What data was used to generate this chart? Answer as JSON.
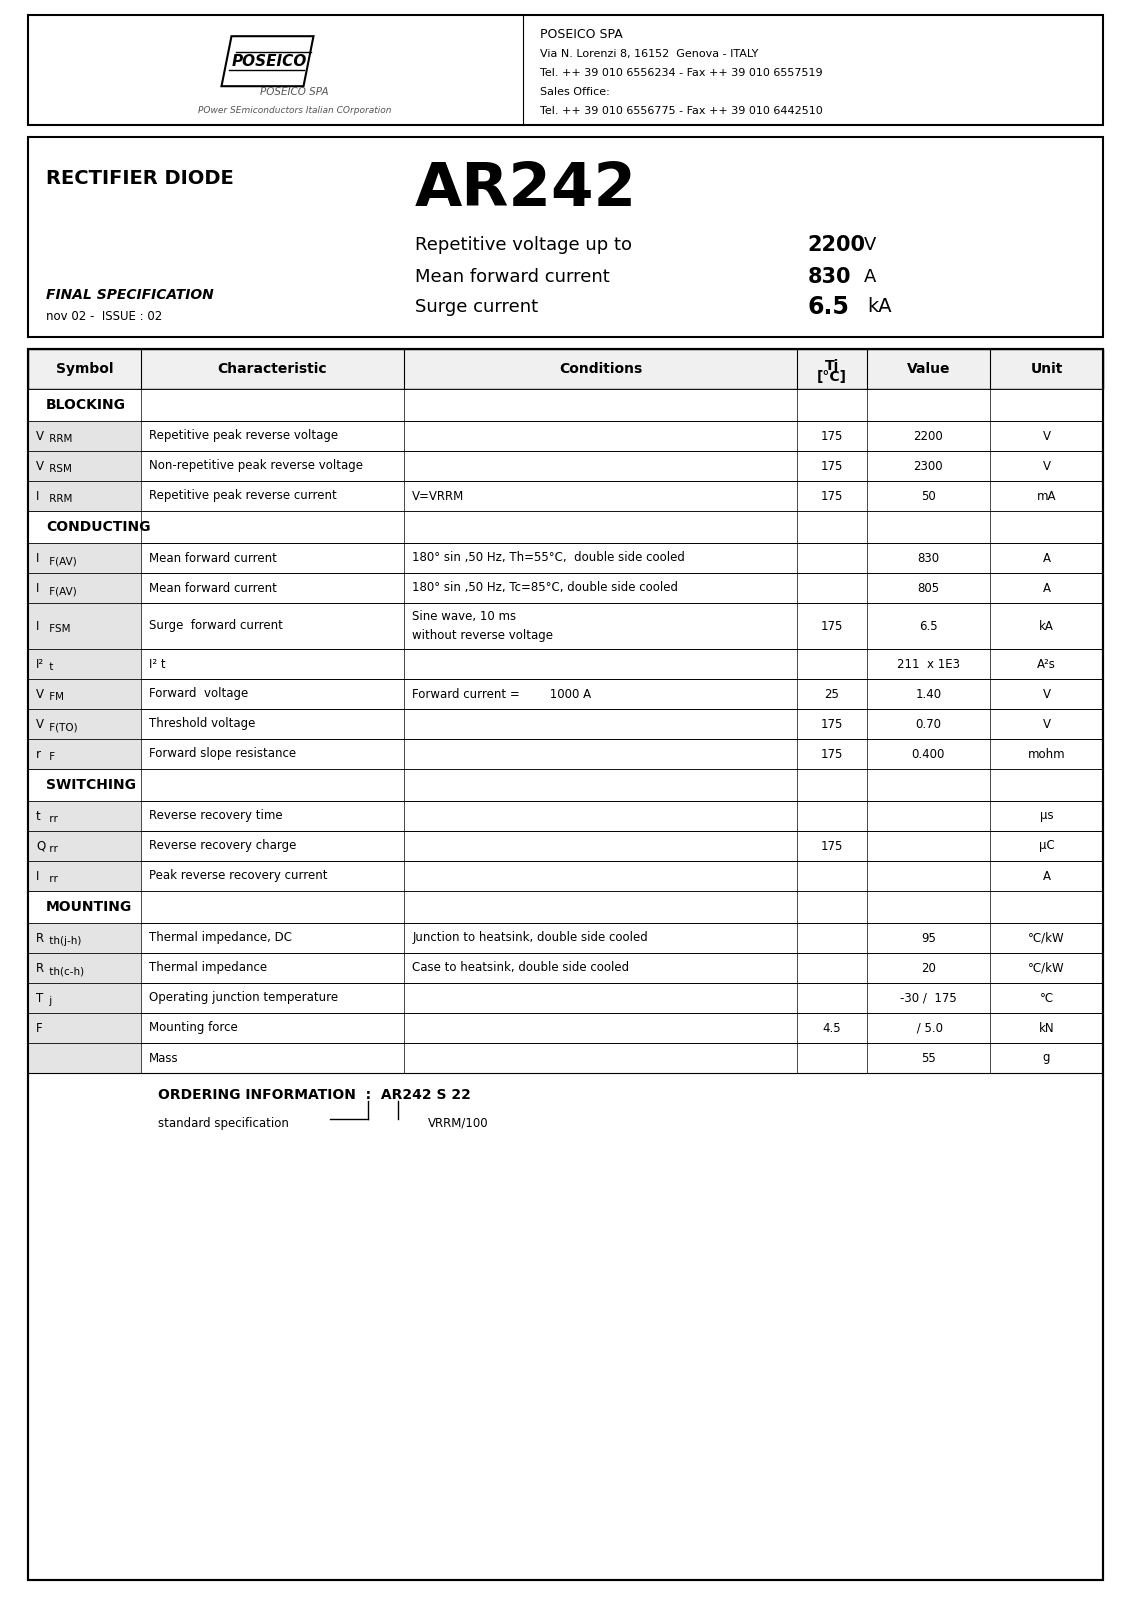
{
  "company": "POSEICO SPA",
  "address1": "Via N. Lorenzi 8, 16152  Genova - ITALY",
  "tel1": "Tel. ++ 39 010 6556234 - Fax ++ 39 010 6557519",
  "sales_office": "Sales Office:",
  "tel2": "Tel. ++ 39 010 6556775 - Fax ++ 39 010 6442510",
  "product_type": "RECTIFIER DIODE",
  "model": "AR242",
  "spec1_label": "Repetitive voltage up to",
  "spec1_value": "2200",
  "spec1_unit": "V",
  "spec2_label": "Mean forward current",
  "spec2_value": "830",
  "spec2_unit": "A",
  "spec3_label": "Surge current",
  "spec3_value": "6.5",
  "spec3_unit": "kA",
  "final_spec": "FINAL SPECIFICATION",
  "issue": "nov 02 -  ISSUE : 02",
  "sections": [
    {
      "name": "BLOCKING",
      "rows": [
        {
          "sym1": "V",
          "sym2": " RRM",
          "char": "Repetitive peak reverse voltage",
          "cond": "",
          "cond2": "",
          "tj": "175",
          "value": "2200",
          "unit": "V"
        },
        {
          "sym1": "V",
          "sym2": " RSM",
          "char": "Non-repetitive peak reverse voltage",
          "cond": "",
          "cond2": "",
          "tj": "175",
          "value": "2300",
          "unit": "V"
        },
        {
          "sym1": "I",
          "sym2": " RRM",
          "char": "Repetitive peak reverse current",
          "cond": "V=VRRM",
          "cond2": "",
          "tj": "175",
          "value": "50",
          "unit": "mA"
        }
      ]
    },
    {
      "name": "CONDUCTING",
      "rows": [
        {
          "sym1": "I",
          "sym2": " F(AV)",
          "char": "Mean forward current",
          "cond": "180° sin ,50 Hz, Th=55°C,  double side cooled",
          "cond2": "",
          "tj": "",
          "value": "830",
          "unit": "A"
        },
        {
          "sym1": "I",
          "sym2": " F(AV)",
          "char": "Mean forward current",
          "cond": "180° sin ,50 Hz, Tc=85°C, double side cooled",
          "cond2": "",
          "tj": "",
          "value": "805",
          "unit": "A"
        },
        {
          "sym1": "I",
          "sym2": " FSM",
          "char": "Surge  forward current",
          "cond": "Sine wave, 10 ms",
          "cond2": "without reverse voltage",
          "tj": "175",
          "value": "6.5",
          "unit": "kA"
        },
        {
          "sym1": "I²",
          "sym2": " t",
          "char": "I² t",
          "cond": "",
          "cond2": "",
          "tj": "",
          "value": "211  x 1E3",
          "unit": "A²s"
        },
        {
          "sym1": "V",
          "sym2": " FM",
          "char": "Forward  voltage",
          "cond": "Forward current =        1000 A",
          "cond2": "",
          "tj": "25",
          "value": "1.40",
          "unit": "V"
        },
        {
          "sym1": "V",
          "sym2": " F(TO)",
          "char": "Threshold voltage",
          "cond": "",
          "cond2": "",
          "tj": "175",
          "value": "0.70",
          "unit": "V"
        },
        {
          "sym1": "r",
          "sym2": " F",
          "char": "Forward slope resistance",
          "cond": "",
          "cond2": "",
          "tj": "175",
          "value": "0.400",
          "unit": "mohm"
        }
      ]
    },
    {
      "name": "SWITCHING",
      "rows": [
        {
          "sym1": "t",
          "sym2": " rr",
          "char": "Reverse recovery time",
          "cond": "",
          "cond2": "",
          "tj": "",
          "value": "",
          "unit": "μs"
        },
        {
          "sym1": "Q",
          "sym2": " rr",
          "char": "Reverse recovery charge",
          "cond": "",
          "cond2": "",
          "tj": "175",
          "value": "",
          "unit": "μC"
        },
        {
          "sym1": "I",
          "sym2": " rr",
          "char": "Peak reverse recovery current",
          "cond": "",
          "cond2": "",
          "tj": "",
          "value": "",
          "unit": "A"
        }
      ]
    },
    {
      "name": "MOUNTING",
      "rows": [
        {
          "sym1": "R",
          "sym2": " th(j-h)",
          "char": "Thermal impedance, DC",
          "cond": "Junction to heatsink, double side cooled",
          "cond2": "",
          "tj": "",
          "value": "95",
          "unit": "°C/kW"
        },
        {
          "sym1": "R",
          "sym2": " th(c-h)",
          "char": "Thermal impedance",
          "cond": "Case to heatsink, double side cooled",
          "cond2": "",
          "tj": "",
          "value": "20",
          "unit": "°C/kW"
        },
        {
          "sym1": "T",
          "sym2": " j",
          "char": "Operating junction temperature",
          "cond": "",
          "cond2": "",
          "tj": "",
          "value": "-30 /  175",
          "unit": "°C"
        },
        {
          "sym1": "F",
          "sym2": "",
          "char": "Mounting force",
          "cond": "",
          "cond2": "",
          "tj": "4.5",
          "value": " / 5.0",
          "unit": "kN"
        },
        {
          "sym1": "",
          "sym2": "",
          "char": "Mass",
          "cond": "",
          "cond2": "",
          "tj": "",
          "value": "55",
          "unit": "g"
        }
      ]
    }
  ],
  "ordering_title": "ORDERING INFORMATION  :  AR242 S 22",
  "ordering_std": "standard specification",
  "ordering_vrrm": "VRRM/100"
}
